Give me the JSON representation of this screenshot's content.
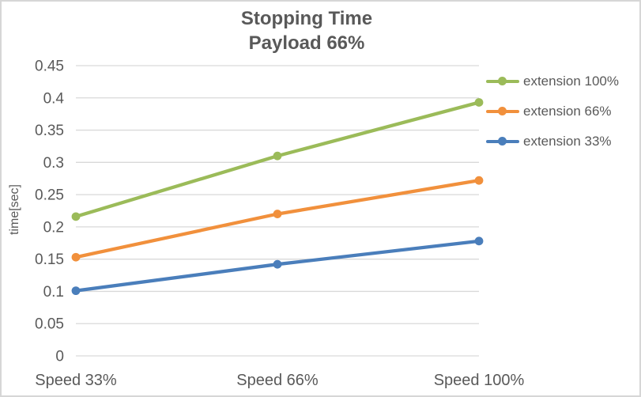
{
  "chart_data": {
    "type": "line",
    "title": "Stopping Time",
    "subtitle": "Payload 66%",
    "xlabel": "",
    "ylabel": "time[sec]",
    "categories": [
      "Speed 33%",
      "Speed 66%",
      "Speed 100%"
    ],
    "series": [
      {
        "name": "extension 100%",
        "color": "#9BBB59",
        "values": [
          0.216,
          0.31,
          0.393
        ]
      },
      {
        "name": "extension 66%",
        "color": "#F1903C",
        "values": [
          0.153,
          0.22,
          0.272
        ]
      },
      {
        "name": "extension 33%",
        "color": "#4A7EBB",
        "values": [
          0.101,
          0.142,
          0.178
        ]
      }
    ],
    "ylim": [
      0,
      0.45
    ],
    "ytick_step": 0.05,
    "yticks": [
      "0",
      "0.05",
      "0.1",
      "0.15",
      "0.2",
      "0.25",
      "0.3",
      "0.35",
      "0.4",
      "0.45"
    ],
    "grid": true,
    "legend_position": "right",
    "text_color": "#595959",
    "grid_color": "#D9D9D9"
  }
}
